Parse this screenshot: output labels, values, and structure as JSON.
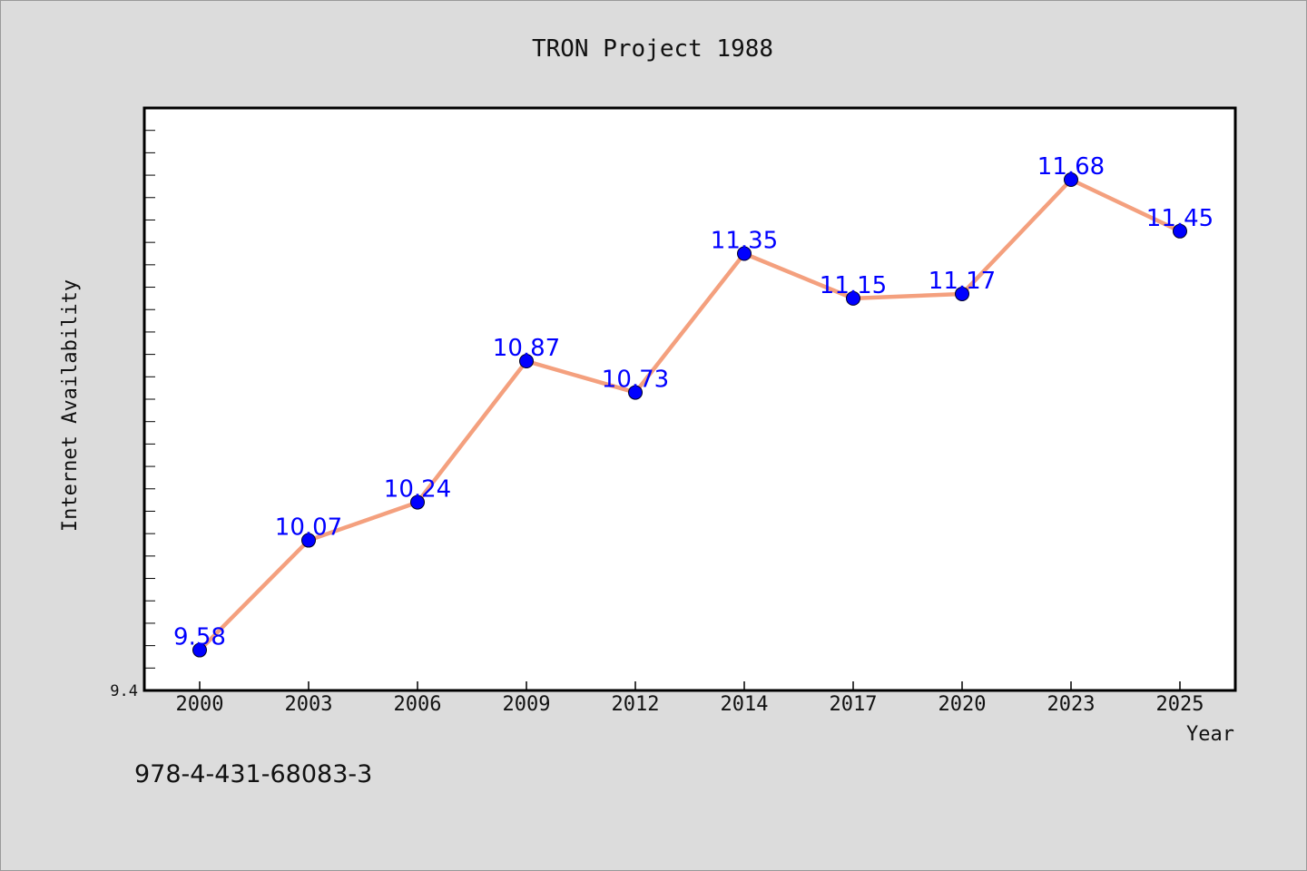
{
  "chart_data": {
    "type": "line",
    "title": "TRON Project 1988",
    "xlabel": "Year",
    "ylabel": "Internet Availability",
    "categories": [
      "2000",
      "2003",
      "2006",
      "2009",
      "2012",
      "2014",
      "2017",
      "2020",
      "2023",
      "2025"
    ],
    "series": [
      {
        "values": [
          9.58,
          10.07,
          10.24,
          10.87,
          10.73,
          11.35,
          11.15,
          11.17,
          11.68,
          11.45
        ]
      }
    ],
    "data_labels": [
      "9.58",
      "10.07",
      "10.24",
      "10.87",
      "10.73",
      "11.35",
      "11.15",
      "11.17",
      "11.68",
      "11.45"
    ],
    "ylim": [
      9.4,
      12.0
    ],
    "yticks_labeled": [
      "9.4"
    ],
    "grid": false,
    "legend": "none",
    "colors": {
      "line": "#f4a07e",
      "marker": "#0000ff",
      "data_label": "#0000ff",
      "plot_bg": "#ffffff",
      "page_bg": "#dcdcdc"
    }
  },
  "footer": {
    "isbn": "978-4-431-68083-3"
  }
}
